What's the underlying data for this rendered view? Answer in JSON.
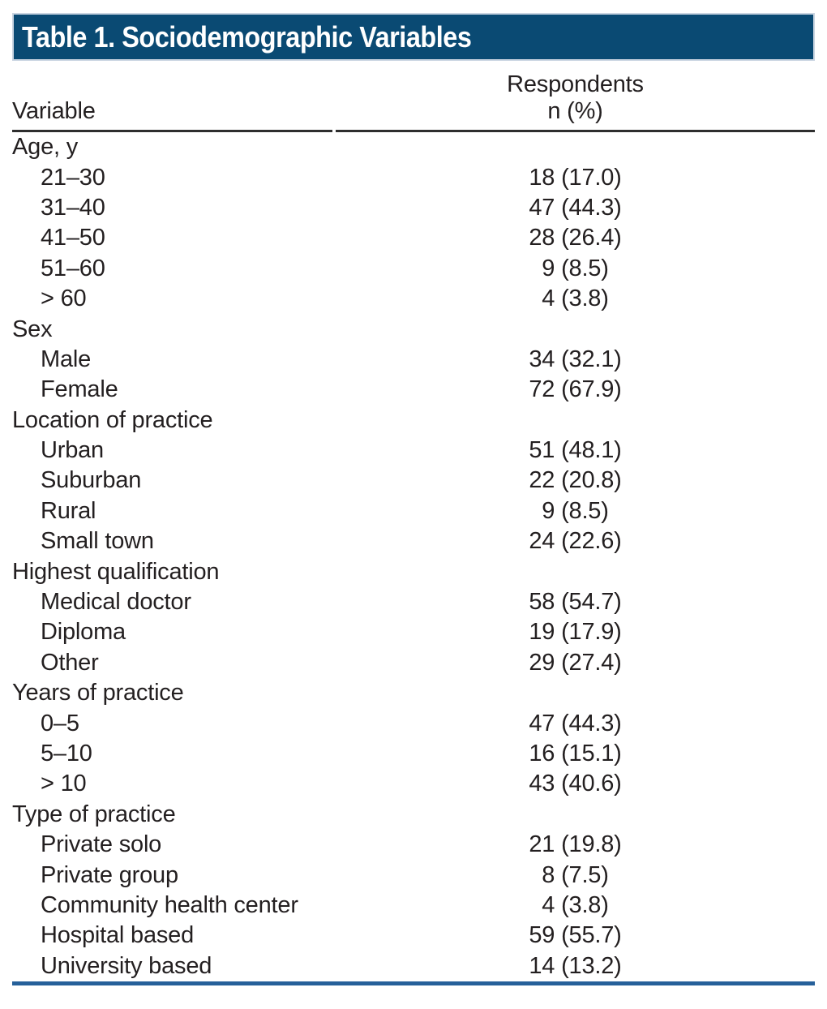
{
  "colors": {
    "page_bg": "#ffffff",
    "bar_bg": "#0a4a73",
    "bar_border": "#c9d4e1",
    "bar_text": "#ffffff",
    "text": "#231f20",
    "header_rule": "#2e2e2e",
    "bottom_rule": "#26609a"
  },
  "title_bar": {
    "text": "Table 1. Sociodemographic Variables"
  },
  "table": {
    "column_headers": {
      "variable": "Variable",
      "respondents_line1": "Respondents",
      "respondents_line2": "n (%)"
    },
    "sections": [
      {
        "label": "Age, y",
        "items": [
          {
            "label": "21–30",
            "value": "18 (17.0)"
          },
          {
            "label": "31–40",
            "value": "47 (44.3)"
          },
          {
            "label": "41–50",
            "value": "28 (26.4)"
          },
          {
            "label": "51–60",
            "value": "9 (8.5)"
          },
          {
            "label": "> 60",
            "value": "4 (3.8)"
          }
        ]
      },
      {
        "label": "Sex",
        "items": [
          {
            "label": "Male",
            "value": "34 (32.1)"
          },
          {
            "label": "Female",
            "value": "72 (67.9)"
          }
        ]
      },
      {
        "label": "Location of practice",
        "items": [
          {
            "label": "Urban",
            "value": "51 (48.1)"
          },
          {
            "label": "Suburban",
            "value": "22 (20.8)"
          },
          {
            "label": "Rural",
            "value": "9 (8.5)"
          },
          {
            "label": "Small town",
            "value": "24 (22.6)"
          }
        ]
      },
      {
        "label": "Highest qualification",
        "items": [
          {
            "label": "Medical doctor",
            "value": "58 (54.7)"
          },
          {
            "label": "Diploma",
            "value": "19 (17.9)"
          },
          {
            "label": "Other",
            "value": "29 (27.4)"
          }
        ]
      },
      {
        "label": "Years of practice",
        "items": [
          {
            "label": "0–5",
            "value": "47 (44.3)"
          },
          {
            "label": "5–10",
            "value": "16 (15.1)"
          },
          {
            "label": "> 10",
            "value": "43 (40.6)"
          }
        ]
      },
      {
        "label": "Type of practice",
        "items": [
          {
            "label": "Private solo",
            "value": "21 (19.8)"
          },
          {
            "label": "Private group",
            "value": "8 (7.5)"
          },
          {
            "label": "Community health center",
            "value": "4 (3.8)"
          },
          {
            "label": "Hospital based",
            "value": "59 (55.7)"
          },
          {
            "label": "University based",
            "value": "14 (13.2)"
          }
        ]
      }
    ]
  }
}
